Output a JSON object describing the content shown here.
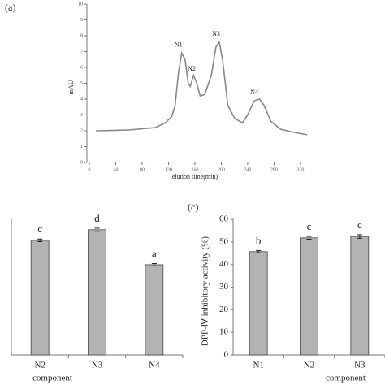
{
  "chart_data": [
    {
      "type": "line",
      "panel": "(a)",
      "x_label": "elution time(min)",
      "y_label": "mAU",
      "x": [
        10,
        60,
        100,
        115,
        125,
        130,
        135,
        140,
        145,
        150,
        153,
        158,
        162,
        168,
        175,
        185,
        192,
        197,
        202,
        210,
        220,
        232,
        240,
        250,
        258,
        265,
        275,
        290,
        310,
        330
      ],
      "values": [
        2.0,
        2.05,
        2.2,
        2.5,
        2.9,
        3.6,
        5.6,
        6.9,
        6.5,
        5.0,
        4.8,
        5.5,
        5.1,
        4.2,
        4.3,
        5.5,
        7.3,
        7.6,
        6.5,
        3.6,
        2.8,
        2.5,
        3.0,
        3.9,
        4.0,
        3.6,
        2.6,
        2.1,
        1.9,
        1.75
      ],
      "color": "#888888",
      "annotations": [
        "N1",
        "N2",
        "N3",
        "N4"
      ],
      "xlim": [
        0,
        330
      ],
      "xticks": [
        0,
        40,
        80,
        120,
        160,
        200,
        240,
        280,
        320
      ],
      "ylim": [
        0,
        10
      ],
      "yticks": [
        0,
        1,
        2,
        3,
        4,
        5,
        6,
        7,
        8,
        9,
        10
      ]
    },
    {
      "type": "bar",
      "x_label": "component",
      "categories": [
        "N2",
        "N3",
        "N4"
      ],
      "values": [
        50.7,
        55.4,
        39.9
      ],
      "errors": [
        0.6,
        0.7,
        0.5
      ],
      "significance": [
        "c",
        "d",
        "a"
      ],
      "color": "#b3b3b3",
      "ylim": [
        0,
        60
      ]
    },
    {
      "type": "bar",
      "panel": "(c)",
      "x_label": "component",
      "y_label": "DPP-Ⅳ inhibitory activity (%)",
      "categories": [
        "N1",
        "N2",
        "N3"
      ],
      "values": [
        45.7,
        51.8,
        52.4
      ],
      "errors": [
        0.5,
        0.6,
        0.8
      ],
      "significance": [
        "b",
        "c",
        "c"
      ],
      "color": "#b3b3b3",
      "ylim": [
        0,
        60
      ],
      "yticks": [
        0,
        10,
        20,
        30,
        40,
        50,
        60
      ]
    }
  ]
}
